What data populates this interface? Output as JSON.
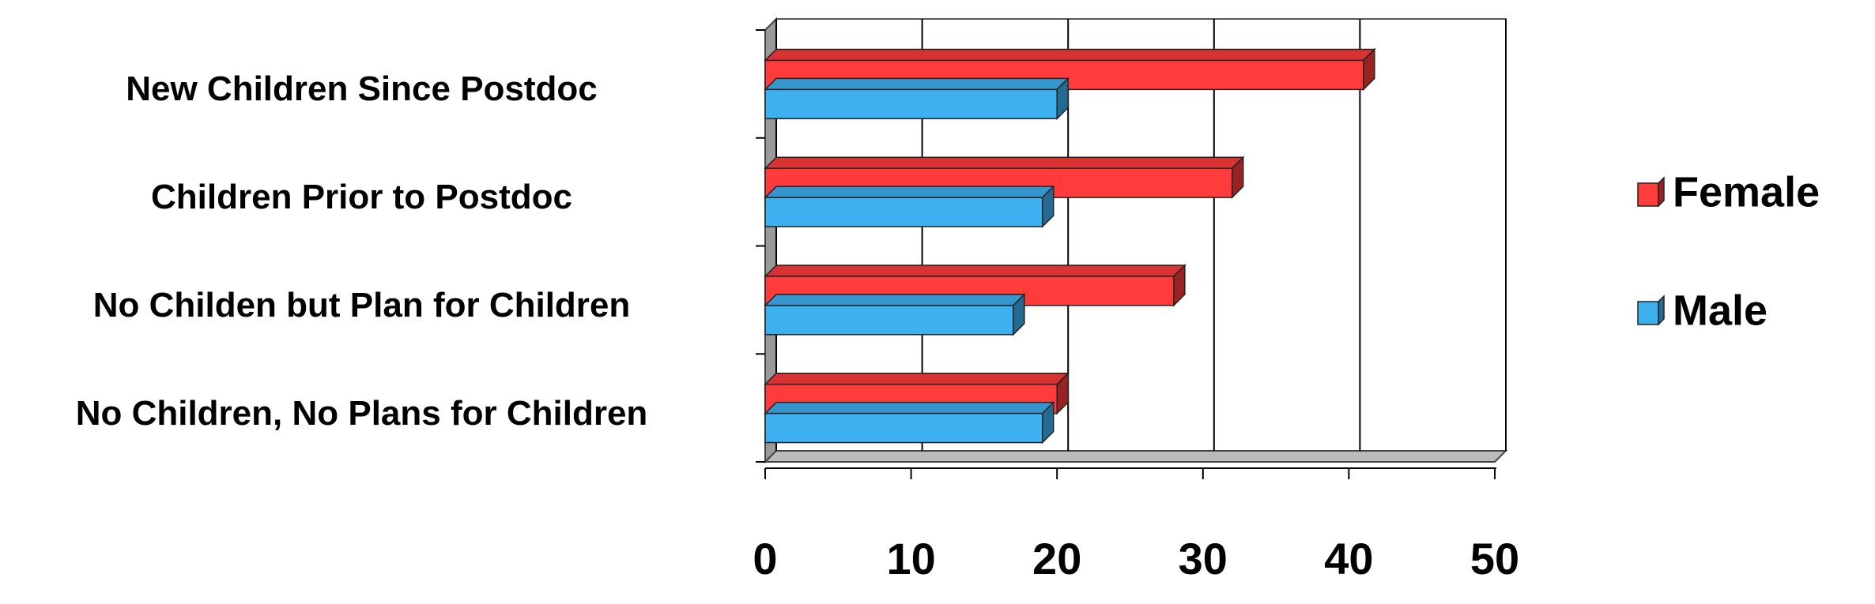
{
  "chart_data": {
    "type": "bar",
    "orientation": "horizontal",
    "categories": [
      "New Children Since Postdoc",
      "Children Prior to Postdoc",
      "No Childen but Plan for Children",
      "No Children, No Plans for Children"
    ],
    "series": [
      {
        "name": "Female",
        "color": "#ff3b3b",
        "values": [
          41,
          32,
          28,
          20
        ]
      },
      {
        "name": "Male",
        "color": "#3db0f0",
        "values": [
          20,
          19,
          17,
          19
        ]
      }
    ],
    "xlim": [
      0,
      50
    ],
    "xticks": [
      0,
      10,
      20,
      30,
      40,
      50
    ],
    "grid": true,
    "legend": "right"
  }
}
